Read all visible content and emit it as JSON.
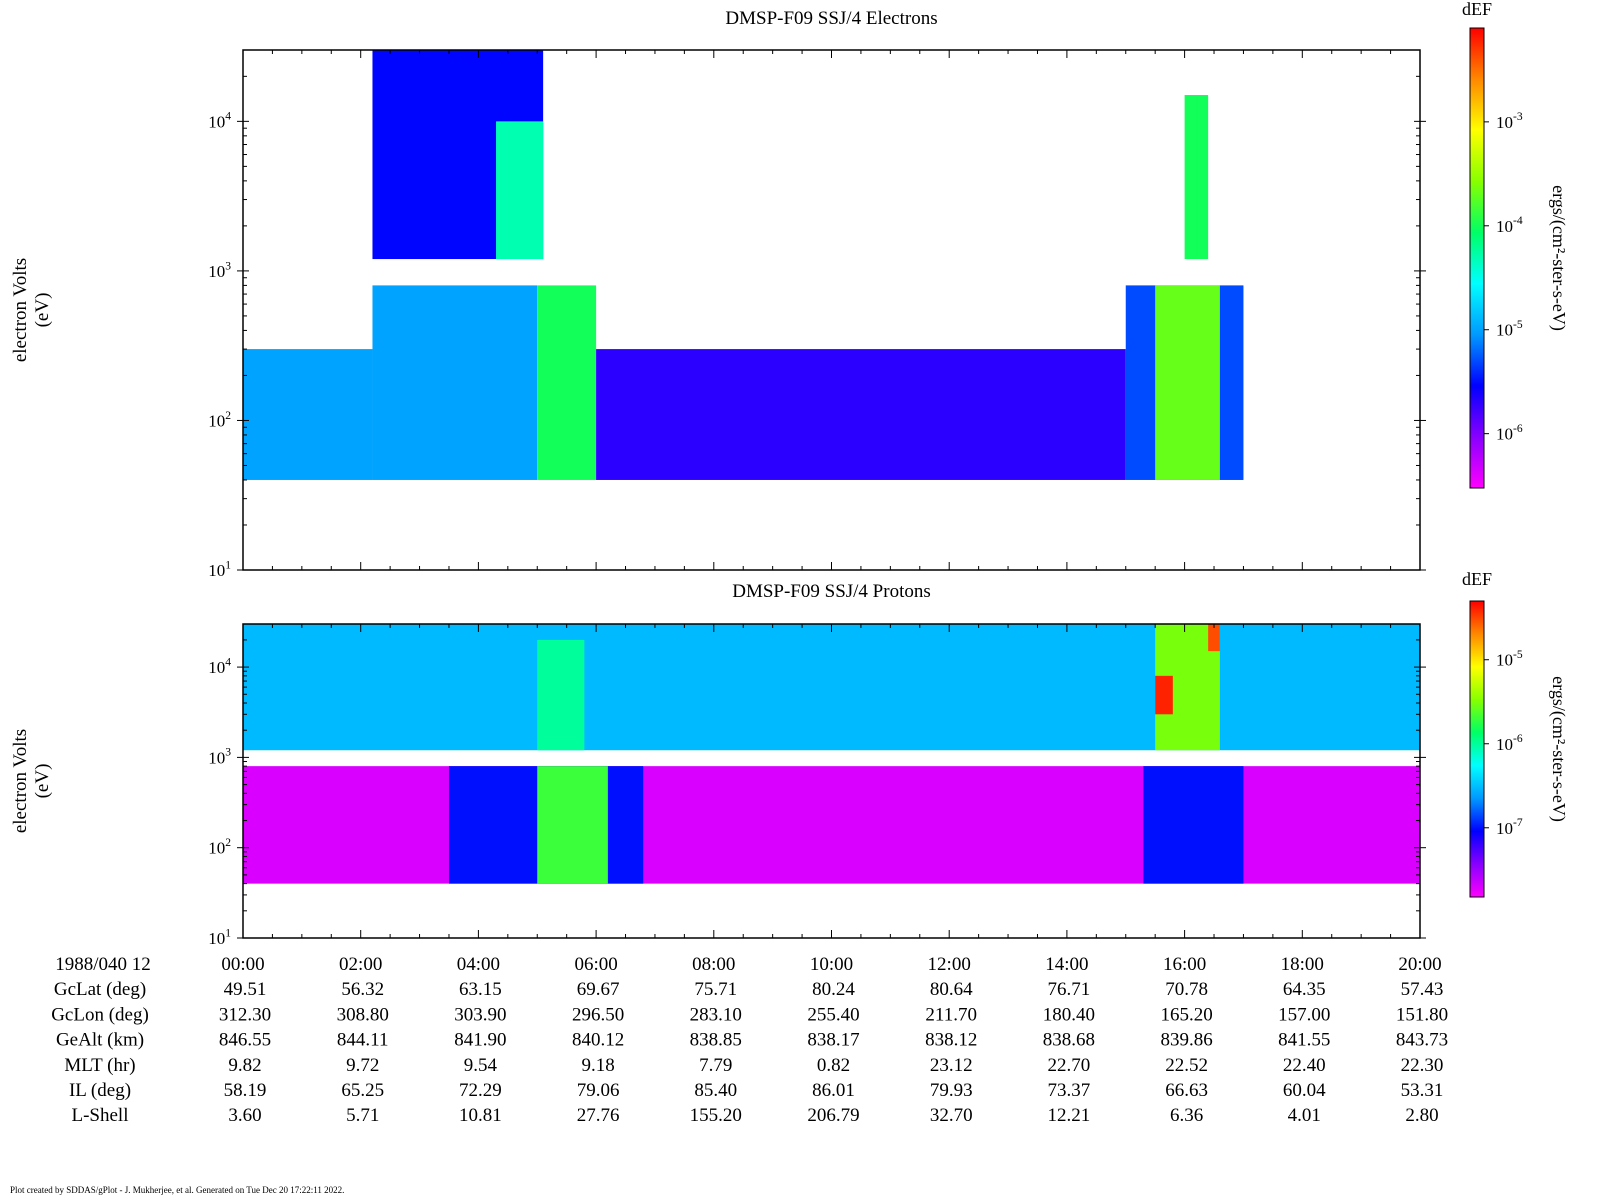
{
  "colors": {
    "colorbar_stops": [
      "#ff00ff",
      "#8800ff",
      "#0000ff",
      "#0099ff",
      "#00ffff",
      "#00ff66",
      "#88ff00",
      "#ffff00",
      "#ff8800",
      "#ff0000"
    ],
    "axis": "#000000",
    "background": "#ffffff"
  },
  "chart_data": [
    {
      "type": "heatmap",
      "title": "DMSP-F09 SSJ/4 Electrons",
      "ylabel_line1": "electron Volts",
      "ylabel_line2": "(eV)",
      "yscale": "log",
      "ylim": [
        10,
        30000
      ],
      "yticks": [
        {
          "base": "10",
          "exp": "1",
          "v": 10
        },
        {
          "base": "10",
          "exp": "2",
          "v": 100
        },
        {
          "base": "10",
          "exp": "3",
          "v": 1000
        },
        {
          "base": "10",
          "exp": "4",
          "v": 10000
        }
      ],
      "colorbar": {
        "label": "dEF",
        "units": "ergs/(cm²-ster-s-eV)",
        "scale": "log",
        "range": [
          3e-07,
          0.008
        ],
        "ticks": [
          {
            "base": "10",
            "exp": "-6",
            "v": 1e-06
          },
          {
            "base": "10",
            "exp": "-5",
            "v": 1e-05
          },
          {
            "base": "10",
            "exp": "-4",
            "v": 0.0001
          },
          {
            "base": "10",
            "exp": "-3",
            "v": 0.001
          }
        ]
      },
      "approx_intensity_regions": [
        {
          "t_start_hr": 0.0,
          "t_end_hr": 2.2,
          "e_min_ev": 40,
          "e_max_ev": 300,
          "level": "1e-5"
        },
        {
          "t_start_hr": 2.2,
          "t_end_hr": 5.0,
          "e_min_ev": 40,
          "e_max_ev": 800,
          "level": "1e-5"
        },
        {
          "t_start_hr": 5.0,
          "t_end_hr": 6.0,
          "e_min_ev": 40,
          "e_max_ev": 800,
          "level": "1e-4"
        },
        {
          "t_start_hr": 2.2,
          "t_end_hr": 5.1,
          "e_min_ev": 1200,
          "e_max_ev": 30000,
          "level": "3e-6"
        },
        {
          "t_start_hr": 4.3,
          "t_end_hr": 5.1,
          "e_min_ev": 1200,
          "e_max_ev": 10000,
          "level": "5e-5"
        },
        {
          "t_start_hr": 6.0,
          "t_end_hr": 15.0,
          "e_min_ev": 40,
          "e_max_ev": 300,
          "level": "2e-6"
        },
        {
          "t_start_hr": 15.0,
          "t_end_hr": 17.0,
          "e_min_ev": 40,
          "e_max_ev": 800,
          "level": "5e-6"
        },
        {
          "t_start_hr": 15.5,
          "t_end_hr": 16.6,
          "e_min_ev": 40,
          "e_max_ev": 800,
          "level": "2e-4"
        },
        {
          "t_start_hr": 16.0,
          "t_end_hr": 16.4,
          "e_min_ev": 1200,
          "e_max_ev": 15000,
          "level": "1e-4"
        }
      ]
    },
    {
      "type": "heatmap",
      "title": "DMSP-F09 SSJ/4 Protons",
      "ylabel_line1": "electron Volts",
      "ylabel_line2": "(eV)",
      "yscale": "log",
      "ylim": [
        10,
        30000
      ],
      "yticks": [
        {
          "base": "10",
          "exp": "1",
          "v": 10
        },
        {
          "base": "10",
          "exp": "2",
          "v": 100
        },
        {
          "base": "10",
          "exp": "3",
          "v": 1000
        },
        {
          "base": "10",
          "exp": "4",
          "v": 10000
        }
      ],
      "colorbar": {
        "label": "dEF",
        "units": "ergs/(cm²-ster-s-eV)",
        "scale": "log",
        "range": [
          1.5e-08,
          5e-05
        ],
        "ticks": [
          {
            "base": "10",
            "exp": "-7",
            "v": 1e-07
          },
          {
            "base": "10",
            "exp": "-6",
            "v": 1e-06
          },
          {
            "base": "10",
            "exp": "-5",
            "v": 1e-05
          }
        ]
      },
      "approx_intensity_regions": [
        {
          "t_start_hr": 0.0,
          "t_end_hr": 20.0,
          "e_min_ev": 40,
          "e_max_ev": 800,
          "level": "2e-8"
        },
        {
          "t_start_hr": 0.0,
          "t_end_hr": 20.0,
          "e_min_ev": 1200,
          "e_max_ev": 30000,
          "level": "3e-7"
        },
        {
          "t_start_hr": 3.5,
          "t_end_hr": 6.8,
          "e_min_ev": 40,
          "e_max_ev": 800,
          "level": "1e-7"
        },
        {
          "t_start_hr": 5.0,
          "t_end_hr": 6.2,
          "e_min_ev": 40,
          "e_max_ev": 800,
          "level": "2e-6"
        },
        {
          "t_start_hr": 5.0,
          "t_end_hr": 5.8,
          "e_min_ev": 1200,
          "e_max_ev": 20000,
          "level": "1e-6"
        },
        {
          "t_start_hr": 15.3,
          "t_end_hr": 17.0,
          "e_min_ev": 40,
          "e_max_ev": 800,
          "level": "1e-7"
        },
        {
          "t_start_hr": 15.5,
          "t_end_hr": 16.6,
          "e_min_ev": 1200,
          "e_max_ev": 30000,
          "level": "3e-6"
        },
        {
          "t_start_hr": 15.5,
          "t_end_hr": 15.8,
          "e_min_ev": 3000,
          "e_max_ev": 8000,
          "level": "4e-5"
        },
        {
          "t_start_hr": 16.4,
          "t_end_hr": 16.6,
          "e_min_ev": 15000,
          "e_max_ev": 30000,
          "level": "3e-5"
        }
      ]
    }
  ],
  "time_axis": {
    "label": "1988/040 12",
    "ticks": [
      "00:00",
      "02:00",
      "04:00",
      "06:00",
      "08:00",
      "10:00",
      "12:00",
      "14:00",
      "16:00",
      "18:00",
      "20:00"
    ]
  },
  "ephemeris": [
    {
      "label": "GcLat (deg)",
      "values": [
        "49.51",
        "56.32",
        "63.15",
        "69.67",
        "75.71",
        "80.24",
        "80.64",
        "76.71",
        "70.78",
        "64.35",
        "57.43"
      ]
    },
    {
      "label": "GcLon (deg)",
      "values": [
        "312.30",
        "308.80",
        "303.90",
        "296.50",
        "283.10",
        "255.40",
        "211.70",
        "180.40",
        "165.20",
        "157.00",
        "151.80"
      ]
    },
    {
      "label": "GeAlt (km)",
      "values": [
        "846.55",
        "844.11",
        "841.90",
        "840.12",
        "838.85",
        "838.17",
        "838.12",
        "838.68",
        "839.86",
        "841.55",
        "843.73"
      ]
    },
    {
      "label": "MLT (hr)",
      "values": [
        "9.82",
        "9.72",
        "9.54",
        "9.18",
        "7.79",
        "0.82",
        "23.12",
        "22.70",
        "22.52",
        "22.40",
        "22.30"
      ]
    },
    {
      "label": "IL (deg)",
      "values": [
        "58.19",
        "65.25",
        "72.29",
        "79.06",
        "85.40",
        "86.01",
        "79.93",
        "73.37",
        "66.63",
        "60.04",
        "53.31"
      ]
    },
    {
      "label": "L-Shell",
      "values": [
        "3.60",
        "5.71",
        "10.81",
        "27.76",
        "155.20",
        "206.79",
        "32.70",
        "12.21",
        "6.36",
        "4.01",
        "2.80"
      ]
    }
  ],
  "footer": "Plot created by SDDAS/gPlot - J. Mukherjee, et al.  Generated on Tue Dec 20 17:22:11 2022."
}
